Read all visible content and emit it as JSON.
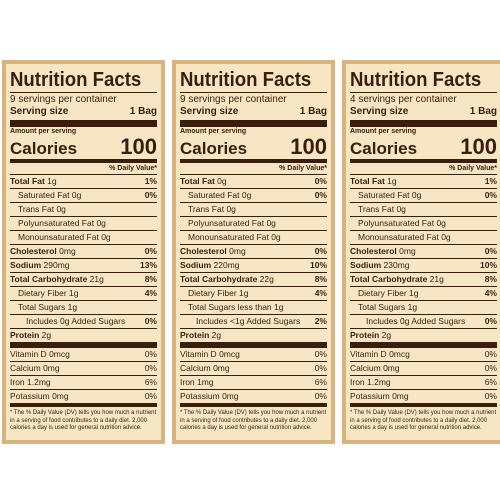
{
  "labels": [
    {
      "title": "Nutrition Facts",
      "servings": "9 servings per container",
      "serving_size_label": "Serving size",
      "serving_size": "1 Bag",
      "amount_per_serving": "Amount per serving",
      "calories_label": "Calories",
      "calories": "100",
      "dv_header": "% Daily Value*",
      "nutrients": [
        {
          "name": "Total Fat",
          "amount": "1g",
          "dv": "1%"
        },
        {
          "name": "Saturated Fat",
          "amount": "0g",
          "dv": "0%"
        },
        {
          "name": "Trans Fat",
          "amount": "0g"
        },
        {
          "name": "Polyunsaturated Fat",
          "amount": "0g"
        },
        {
          "name": "Monounsaturated Fat",
          "amount": "0g"
        },
        {
          "name": "Cholesterol",
          "amount": "0mg",
          "dv": "0%"
        },
        {
          "name": "Sodium",
          "amount": "290mg",
          "dv": "13%"
        },
        {
          "name": "Total Carbohydrate",
          "amount": "21g",
          "dv": "8%"
        },
        {
          "name": "Dietary Fiber",
          "amount": "1g",
          "dv": "4%"
        },
        {
          "name": "Total Sugars",
          "amount": "1g"
        },
        {
          "name": "Includes 0g Added Sugars",
          "dv": "0%"
        },
        {
          "name": "Protein",
          "amount": "2g"
        }
      ],
      "vitamins": [
        {
          "name": "Vitamin D",
          "amount": "0mcg",
          "dv": "0%"
        },
        {
          "name": "Calcium",
          "amount": "0mg",
          "dv": "0%"
        },
        {
          "name": "Iron",
          "amount": "1.2mg",
          "dv": "6%"
        },
        {
          "name": "Potassium",
          "amount": "0mg",
          "dv": "0%"
        }
      ],
      "footnote": "* The % Daily Value (DV) tells you how much a nutrient in a serving of food contributes to a daily diet. 2,000 calories a day is used for general nutrition advice."
    },
    {
      "title": "Nutrition Facts",
      "servings": "9 servings per container",
      "serving_size_label": "Serving size",
      "serving_size": "1 Bag",
      "amount_per_serving": "Amount per serving",
      "calories_label": "Calories",
      "calories": "100",
      "dv_header": "% Daily Value*",
      "nutrients": [
        {
          "name": "Total Fat",
          "amount": "0g",
          "dv": "0%"
        },
        {
          "name": "Saturated Fat",
          "amount": "0g",
          "dv": "0%"
        },
        {
          "name": "Trans Fat",
          "amount": "0g"
        },
        {
          "name": "Polyunsaturated Fat",
          "amount": "0g"
        },
        {
          "name": "Monounsaturated Fat",
          "amount": "0g"
        },
        {
          "name": "Cholesterol",
          "amount": "0mg",
          "dv": "0%"
        },
        {
          "name": "Sodium",
          "amount": "220mg",
          "dv": "10%"
        },
        {
          "name": "Total Carbohydrate",
          "amount": "22g",
          "dv": "8%"
        },
        {
          "name": "Dietary Fiber",
          "amount": "1g",
          "dv": "4%"
        },
        {
          "name": "Total Sugars",
          "amount": "less than 1g"
        },
        {
          "name": "Includes <1g Added Sugars",
          "dv": "2%"
        },
        {
          "name": "Protein",
          "amount": "2g"
        }
      ],
      "vitamins": [
        {
          "name": "Vitamin D",
          "amount": "0mcg",
          "dv": "0%"
        },
        {
          "name": "Calcium",
          "amount": "0mg",
          "dv": "0%"
        },
        {
          "name": "Iron",
          "amount": "1mg",
          "dv": "6%"
        },
        {
          "name": "Potassium",
          "amount": "0mg",
          "dv": "0%"
        }
      ],
      "footnote": "* The % Daily Value (DV) tells you how much a nutrient in a serving of food contributes to a daily diet. 2,000 calories a day is used for general nutrition advice."
    },
    {
      "title": "Nutrition Facts",
      "servings": "4 servings per container",
      "serving_size_label": "Serving size",
      "serving_size": "1 Bag",
      "amount_per_serving": "Amount per serving",
      "calories_label": "Calories",
      "calories": "100",
      "dv_header": "% Daily Value*",
      "nutrients": [
        {
          "name": "Total Fat",
          "amount": "1g",
          "dv": "1%"
        },
        {
          "name": "Saturated Fat",
          "amount": "0g",
          "dv": "0%"
        },
        {
          "name": "Trans Fat",
          "amount": "0g"
        },
        {
          "name": "Polyunsaturated Fat",
          "amount": "0g"
        },
        {
          "name": "Monounsaturated Fat",
          "amount": "0g"
        },
        {
          "name": "Cholesterol",
          "amount": "0mg",
          "dv": "0%"
        },
        {
          "name": "Sodium",
          "amount": "230mg",
          "dv": "10%"
        },
        {
          "name": "Total Carbohydrate",
          "amount": "21g",
          "dv": "8%"
        },
        {
          "name": "Dietary Fiber",
          "amount": "1g",
          "dv": "4%"
        },
        {
          "name": "Total Sugars",
          "amount": "1g"
        },
        {
          "name": "Includes 0g Added Sugars",
          "dv": "0%"
        },
        {
          "name": "Protein",
          "amount": "2g"
        }
      ],
      "vitamins": [
        {
          "name": "Vitamin D",
          "amount": "0mcg",
          "dv": "0%"
        },
        {
          "name": "Calcium",
          "amount": "0mg",
          "dv": "0%"
        },
        {
          "name": "Iron",
          "amount": "1.2mg",
          "dv": "6%"
        },
        {
          "name": "Potassium",
          "amount": "0mg",
          "dv": "0%"
        }
      ],
      "footnote": "* The % Daily Value (DV) tells you how much a nutrient in a serving of food contributes to a daily diet. 2,000 calories a day is used for general nutrition advice."
    }
  ]
}
